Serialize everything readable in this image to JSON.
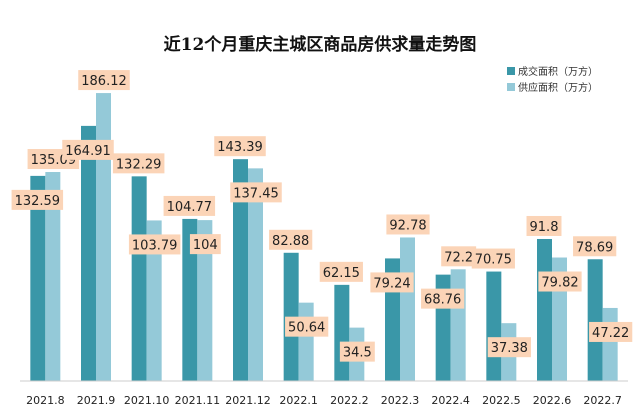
{
  "chart_data": {
    "type": "bar",
    "title": "近12个月重庆主城区商品房供求量走势图",
    "categories": [
      "2021.8",
      "2021.9",
      "2021.10",
      "2021.11",
      "2021.12",
      "2022.1",
      "2022.2",
      "2022.3",
      "2022.4",
      "2022.5",
      "2022.6",
      "2022.7"
    ],
    "series": [
      {
        "name": "成交面积（万方）",
        "color": "#3a97a8",
        "values": [
          132.59,
          164.91,
          132.29,
          104.77,
          143.39,
          82.88,
          62.15,
          79.24,
          68.76,
          70.75,
          91.8,
          78.69
        ]
      },
      {
        "name": "供应面积（万方）",
        "color": "#94c9d8",
        "values": [
          135.09,
          186.12,
          103.79,
          104,
          137.45,
          50.64,
          34.5,
          92.78,
          72.2,
          37.38,
          79.82,
          47.22
        ]
      }
    ],
    "ylim": [
      0,
      210
    ],
    "grid": false,
    "legend_position": "top-right",
    "label_background": "#fbd4b7"
  }
}
